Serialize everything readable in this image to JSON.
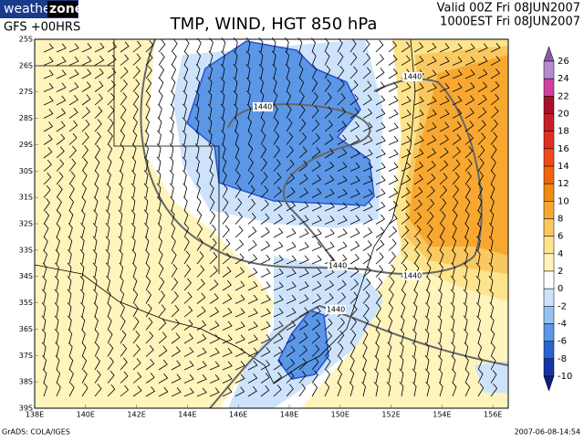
{
  "header": {
    "logo_left": "weather",
    "logo_right": "zone",
    "run": "GFS +00HRS",
    "title": "TMP, WIND, HGT 850 hPa",
    "valid_utc": "Valid 00Z Fri 08JUN2007",
    "valid_local": "1000EST Fri 08JUN2007"
  },
  "map": {
    "lat_labels": [
      "25S",
      "26S",
      "27S",
      "28S",
      "29S",
      "30S",
      "31S",
      "32S",
      "33S",
      "34S",
      "35S",
      "36S",
      "37S",
      "38S",
      "39S"
    ],
    "lon_labels": [
      "138E",
      "140E",
      "142E",
      "144E",
      "146E",
      "148E",
      "150E",
      "152E",
      "154E",
      "156E"
    ],
    "contour_labels": [
      "1440",
      "1440",
      "1440",
      "1440",
      "1440"
    ]
  },
  "legend": {
    "labels": [
      "26",
      "24",
      "22",
      "20",
      "18",
      "16",
      "14",
      "12",
      "10",
      "8",
      "6",
      "4",
      "2",
      "0",
      "-2",
      "-4",
      "-6",
      "-8",
      "-10"
    ],
    "colors": [
      "#8a5aa8",
      "#b68ccf",
      "#d040a0",
      "#a8102a",
      "#c81e28",
      "#e03020",
      "#ee4a1a",
      "#f26410",
      "#f38a10",
      "#f8a830",
      "#f9c860",
      "#fde48c",
      "#fff4bc",
      "#ffffff",
      "#cde3fb",
      "#95c2f2",
      "#5b97e6",
      "#2a62cf",
      "#1536a0",
      "#0c2080"
    ]
  },
  "footer": {
    "source": "GrADS: COLA/IGES",
    "timestamp": "2007-06-08-14:54"
  }
}
